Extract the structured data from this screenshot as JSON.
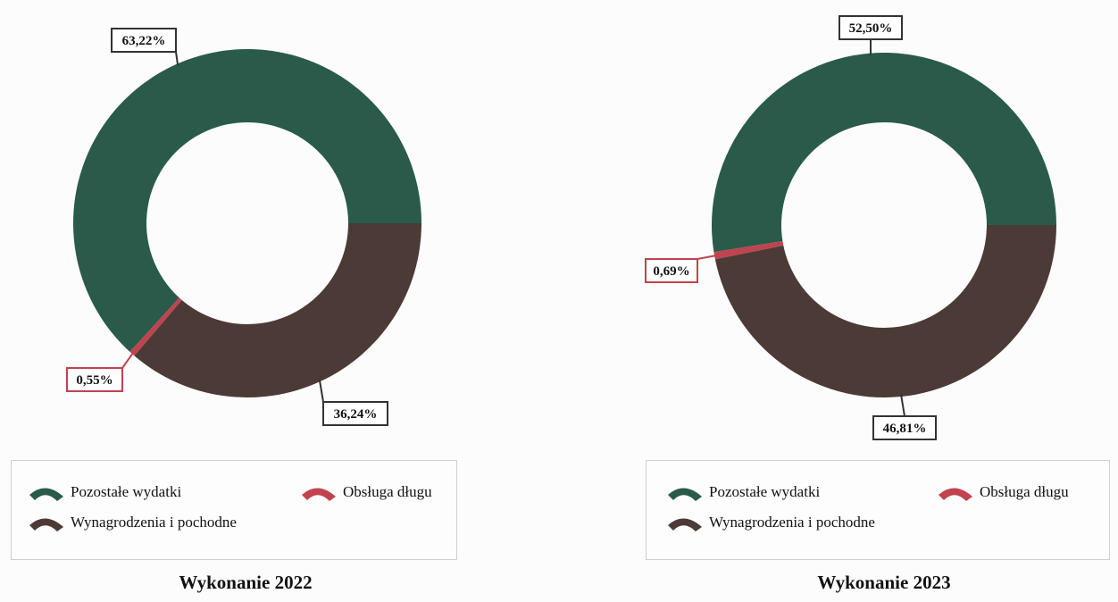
{
  "colors": {
    "Pozostałe wydatki": "#2a5a4a",
    "Obsługa długu": "#c0434f",
    "Wynagrodzenia i pochodne": "#4b3a35"
  },
  "chart_data": [
    {
      "type": "donut",
      "title": "Wykonanie 2022",
      "legend": [
        "Pozostałe wydatki",
        "Obsługa długu",
        "Wynagrodzenia i pochodne"
      ],
      "series": [
        {
          "name": "Pozostałe wydatki",
          "value": 63.22,
          "label": "63,22%"
        },
        {
          "name": "Obsługa długu",
          "value": 0.55,
          "label": "0,55%"
        },
        {
          "name": "Wynagrodzenia i pochodne",
          "value": 36.24,
          "label": "36,24%"
        }
      ]
    },
    {
      "type": "donut",
      "title": "Wykonanie 2023",
      "legend": [
        "Pozostałe wydatki",
        "Obsługa długu",
        "Wynagrodzenia i pochodne"
      ],
      "series": [
        {
          "name": "Pozostałe wydatki",
          "value": 52.5,
          "label": "52,50%"
        },
        {
          "name": "Obsługa długu",
          "value": 0.69,
          "label": "0,69%"
        },
        {
          "name": "Wynagrodzenia i pochodne",
          "value": 46.81,
          "label": "46,81%"
        }
      ]
    }
  ]
}
